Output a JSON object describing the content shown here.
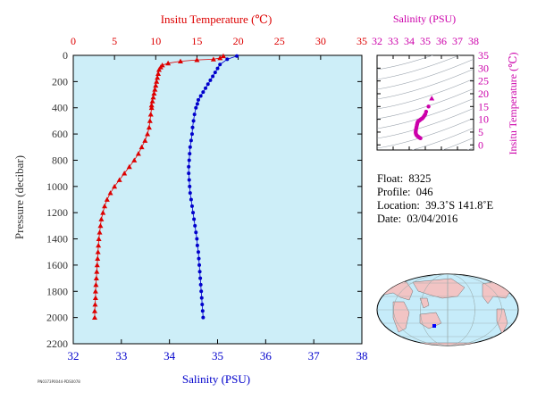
{
  "main": {
    "title_top": "Insitu Temperature (℃)",
    "title_bottom": "Salinity (PSU)",
    "ylabel": "Pressure (decibar)",
    "temp_color": "#dd0000",
    "sal_color": "#0000cc",
    "tick_color_pressure": "#333333",
    "background": "#cdeef8"
  },
  "ts_inset": {
    "title": "Salinity (PSU)",
    "ylabel": "Insitu Temperature (℃)",
    "color": "#cc00aa"
  },
  "info": {
    "float_label": "Float:",
    "float": "8325",
    "profile_label": "Profile:",
    "profile": "046",
    "location_label": "Location:",
    "location": "39.3˚S  141.8˚E",
    "date_label": "Date:",
    "date": "03/04/2016"
  },
  "map": {
    "marker_color": "#0000ff",
    "ocean": "#c6ecfa",
    "land": "#f2c4c4"
  },
  "footer": {
    "code": "PN0373P0044-PDS0078"
  },
  "chart_data": [
    {
      "type": "line",
      "name": "profile",
      "ylabel": "Pressure (decibar)",
      "ylim": [
        2200,
        0
      ],
      "yticks": [
        0,
        200,
        400,
        600,
        800,
        1000,
        1200,
        1400,
        1600,
        1800,
        2000,
        2200
      ],
      "x_top": {
        "label": "Insitu Temperature (℃)",
        "lim": [
          0,
          35
        ],
        "ticks": [
          0,
          5,
          10,
          15,
          20,
          25,
          30,
          35
        ]
      },
      "x_bottom": {
        "label": "Salinity (PSU)",
        "lim": [
          32,
          38
        ],
        "ticks": [
          32,
          33,
          34,
          35,
          36,
          37,
          38
        ]
      },
      "temperature": [
        [
          18.2,
          5
        ],
        [
          17.8,
          20
        ],
        [
          17.0,
          30
        ],
        [
          15.0,
          35
        ],
        [
          13.0,
          45
        ],
        [
          11.5,
          60
        ],
        [
          10.8,
          75
        ],
        [
          10.6,
          90
        ],
        [
          10.4,
          110
        ],
        [
          10.3,
          140
        ],
        [
          10.2,
          170
        ],
        [
          10.1,
          200
        ],
        [
          10.0,
          230
        ],
        [
          9.9,
          260
        ],
        [
          9.8,
          290
        ],
        [
          9.7,
          320
        ],
        [
          9.6,
          350
        ],
        [
          9.5,
          380
        ],
        [
          9.5,
          400
        ],
        [
          9.4,
          450
        ],
        [
          9.3,
          500
        ],
        [
          9.2,
          550
        ],
        [
          9.0,
          600
        ],
        [
          8.7,
          650
        ],
        [
          8.3,
          700
        ],
        [
          7.9,
          750
        ],
        [
          7.4,
          800
        ],
        [
          6.8,
          850
        ],
        [
          6.2,
          900
        ],
        [
          5.6,
          950
        ],
        [
          5.0,
          1000
        ],
        [
          4.5,
          1050
        ],
        [
          4.1,
          1100
        ],
        [
          3.8,
          1150
        ],
        [
          3.6,
          1200
        ],
        [
          3.4,
          1250
        ],
        [
          3.3,
          1300
        ],
        [
          3.2,
          1350
        ],
        [
          3.1,
          1400
        ],
        [
          3.05,
          1450
        ],
        [
          3.0,
          1500
        ],
        [
          2.95,
          1550
        ],
        [
          2.9,
          1600
        ],
        [
          2.85,
          1650
        ],
        [
          2.8,
          1700
        ],
        [
          2.75,
          1750
        ],
        [
          2.7,
          1800
        ],
        [
          2.7,
          1850
        ],
        [
          2.65,
          1900
        ],
        [
          2.6,
          1950
        ],
        [
          2.6,
          2000
        ]
      ],
      "salinity": [
        [
          35.4,
          5
        ],
        [
          35.2,
          30
        ],
        [
          35.05,
          70
        ],
        [
          35.0,
          100
        ],
        [
          34.95,
          130
        ],
        [
          34.9,
          160
        ],
        [
          34.85,
          190
        ],
        [
          34.8,
          220
        ],
        [
          34.75,
          250
        ],
        [
          34.7,
          280
        ],
        [
          34.65,
          310
        ],
        [
          34.6,
          340
        ],
        [
          34.58,
          370
        ],
        [
          34.55,
          400
        ],
        [
          34.52,
          450
        ],
        [
          34.5,
          500
        ],
        [
          34.48,
          550
        ],
        [
          34.47,
          600
        ],
        [
          34.45,
          650
        ],
        [
          34.43,
          700
        ],
        [
          34.42,
          750
        ],
        [
          34.41,
          800
        ],
        [
          34.4,
          850
        ],
        [
          34.4,
          900
        ],
        [
          34.41,
          950
        ],
        [
          34.42,
          1000
        ],
        [
          34.43,
          1050
        ],
        [
          34.45,
          1100
        ],
        [
          34.47,
          1150
        ],
        [
          34.49,
          1200
        ],
        [
          34.51,
          1250
        ],
        [
          34.53,
          1300
        ],
        [
          34.55,
          1350
        ],
        [
          34.57,
          1400
        ],
        [
          34.58,
          1450
        ],
        [
          34.6,
          1500
        ],
        [
          34.61,
          1550
        ],
        [
          34.62,
          1600
        ],
        [
          34.63,
          1650
        ],
        [
          34.64,
          1700
        ],
        [
          34.65,
          1750
        ],
        [
          34.66,
          1800
        ],
        [
          34.67,
          1850
        ],
        [
          34.68,
          1900
        ],
        [
          34.69,
          1950
        ],
        [
          34.7,
          2000
        ]
      ]
    },
    {
      "type": "scatter",
      "name": "ts-diagram",
      "xlabel": "Salinity (PSU)",
      "ylabel": "Insitu Temperature (℃)",
      "xlim": [
        32,
        38
      ],
      "xticks": [
        32,
        33,
        34,
        35,
        36,
        37,
        38
      ],
      "ylim": [
        -2,
        35
      ],
      "yticks": [
        0,
        5,
        10,
        15,
        20,
        25,
        30,
        35
      ],
      "points": [
        [
          35.4,
          18.2
        ],
        [
          35.2,
          15.0
        ],
        [
          35.05,
          13.0
        ],
        [
          35.0,
          12.0
        ],
        [
          34.95,
          11.5
        ],
        [
          34.9,
          11.0
        ],
        [
          34.85,
          10.6
        ],
        [
          34.8,
          10.3
        ],
        [
          34.75,
          10.1
        ],
        [
          34.7,
          9.9
        ],
        [
          34.65,
          9.6
        ],
        [
          34.6,
          9.4
        ],
        [
          34.55,
          9.2
        ],
        [
          34.52,
          8.8
        ],
        [
          34.5,
          8.3
        ],
        [
          34.48,
          7.8
        ],
        [
          34.46,
          7.2
        ],
        [
          34.44,
          6.6
        ],
        [
          34.42,
          6.0
        ],
        [
          34.41,
          5.5
        ],
        [
          34.4,
          5.0
        ],
        [
          34.41,
          4.5
        ],
        [
          34.43,
          4.1
        ],
        [
          34.46,
          3.8
        ],
        [
          34.5,
          3.5
        ],
        [
          34.54,
          3.3
        ],
        [
          34.58,
          3.1
        ],
        [
          34.62,
          2.9
        ],
        [
          34.66,
          2.75
        ],
        [
          34.7,
          2.6
        ]
      ]
    }
  ]
}
